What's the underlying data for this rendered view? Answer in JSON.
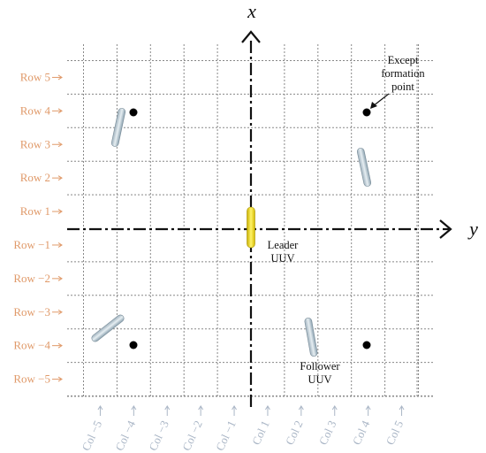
{
  "axes": {
    "x": "x",
    "y": "y"
  },
  "rows": [
    "Row 5",
    "Row 4",
    "Row 3",
    "Row 2",
    "Row 1",
    "Row −1",
    "Row −2",
    "Row −3",
    "Row −4",
    "Row −5"
  ],
  "columns": [
    "Col −5",
    "Col −4",
    "Col −3",
    "Col −2",
    "Col −1",
    "Col 1",
    "Col 2",
    "Col 3",
    "Col 4",
    "Col 5"
  ],
  "annotations": {
    "formation_point": [
      "Except",
      "formation",
      "point"
    ],
    "leader": [
      "Leader",
      "UUV"
    ],
    "follower": [
      "Follower",
      "UUV"
    ]
  }
}
